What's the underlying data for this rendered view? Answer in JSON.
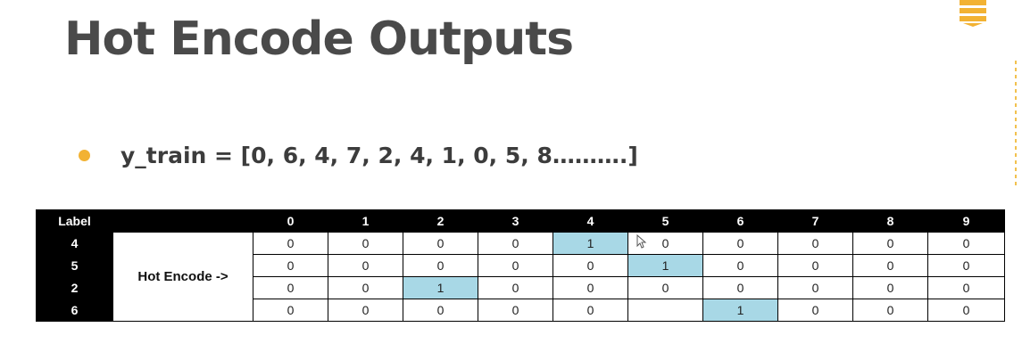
{
  "slide": {
    "title": "Hot Encode Outputs",
    "bullet_text": "y_train = [0, 6, 4, 7, 2, 4, 1, 0, 5, 8……….]"
  },
  "colors": {
    "bullet": "#f2b233",
    "highlight": "#a8d8e6",
    "header_bg": "#000000",
    "title": "#4a4a4a"
  },
  "table": {
    "header_label": "Label",
    "header_columns": [
      "0",
      "1",
      "2",
      "3",
      "4",
      "5",
      "6",
      "7",
      "8",
      "9"
    ],
    "encode_label": "Hot Encode ->",
    "rows": [
      {
        "label": "4",
        "cells": [
          "0",
          "0",
          "0",
          "0",
          "1",
          "0",
          "0",
          "0",
          "0",
          "0"
        ],
        "hot_index": 4
      },
      {
        "label": "5",
        "cells": [
          "0",
          "0",
          "0",
          "0",
          "0",
          "1",
          "0",
          "0",
          "0",
          "0"
        ],
        "hot_index": 5
      },
      {
        "label": "2",
        "cells": [
          "0",
          "0",
          "1",
          "0",
          "0",
          "0",
          "0",
          "0",
          "0",
          "0"
        ],
        "hot_index": 2
      },
      {
        "label": "6",
        "cells": [
          "0",
          "0",
          "0",
          "0",
          "0",
          "",
          "1",
          "0",
          "0",
          "0"
        ],
        "hot_index": 6
      }
    ]
  }
}
